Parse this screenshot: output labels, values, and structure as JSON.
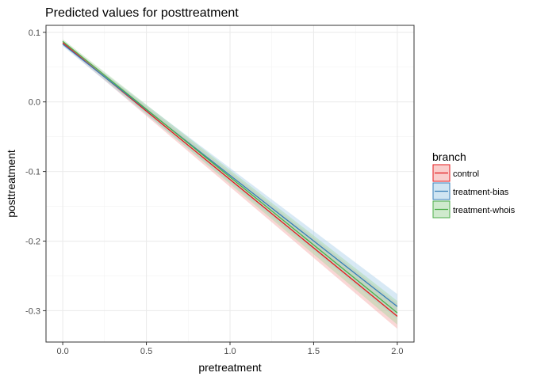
{
  "chart_data": {
    "type": "line",
    "title": "Predicted values for posttreatment",
    "xlabel": "pretreatment",
    "ylabel": "posttreatment",
    "xlim": [
      -0.1,
      2.1
    ],
    "ylim": [
      -0.345,
      0.11
    ],
    "x_ticks": [
      0.0,
      0.5,
      1.0,
      1.5,
      2.0
    ],
    "x_tick_labels": [
      "0.0",
      "0.5",
      "1.0",
      "1.5",
      "2.0"
    ],
    "y_ticks": [
      0.1,
      0.0,
      -0.1,
      -0.2,
      -0.3
    ],
    "y_tick_labels": [
      "0.1",
      "0.0",
      "-0.1",
      "-0.2",
      "-0.3"
    ],
    "grid": true,
    "legend": {
      "title": "branch",
      "position": "right"
    },
    "series": [
      {
        "name": "control",
        "color": "#e41a1c",
        "band_color": "#f4a6a3",
        "x": [
          0.0,
          2.0
        ],
        "y": [
          0.085,
          -0.308
        ],
        "lower": [
          0.082,
          -0.326
        ],
        "upper": [
          0.088,
          -0.29
        ]
      },
      {
        "name": "treatment-bias",
        "color": "#377eb8",
        "band_color": "#a9cfe8",
        "x": [
          0.0,
          2.0
        ],
        "y": [
          0.083,
          -0.294
        ],
        "lower": [
          0.08,
          -0.312
        ],
        "upper": [
          0.086,
          -0.276
        ]
      },
      {
        "name": "treatment-whois",
        "color": "#4daf4a",
        "band_color": "#a8d8a4",
        "x": [
          0.0,
          2.0
        ],
        "y": [
          0.087,
          -0.303
        ],
        "lower": [
          0.084,
          -0.32
        ],
        "upper": [
          0.09,
          -0.286
        ]
      }
    ]
  }
}
